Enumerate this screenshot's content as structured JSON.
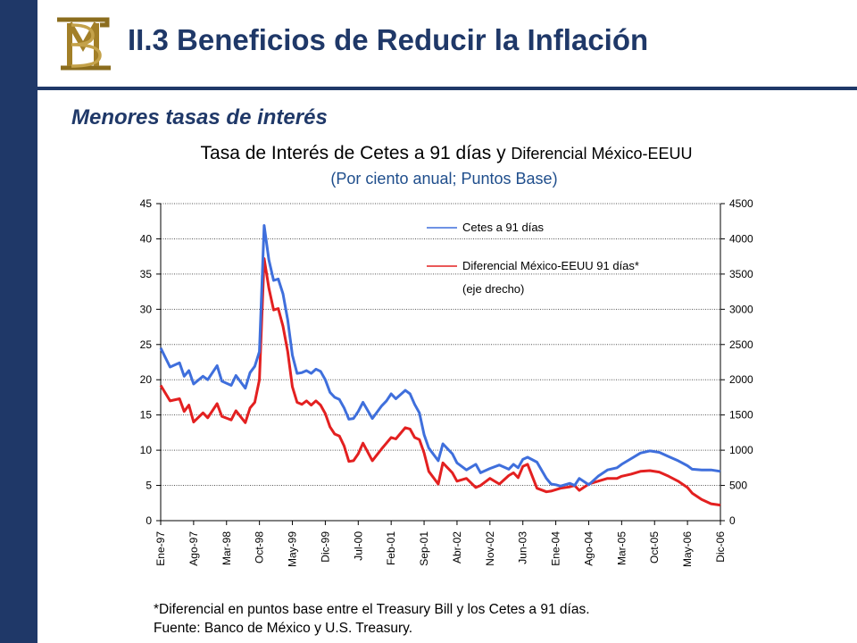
{
  "header": {
    "logo_text": "BM",
    "title": "II.3  Beneficios de Reducir la Inflación",
    "subtitle": "Menores tasas de interés"
  },
  "chart_title": {
    "main": "Tasa de Interés de Cetes a 91 días y ",
    "main_small": "Diferencial México-EEUU",
    "units": "(Por ciento anual; Puntos Base)"
  },
  "footnotes": {
    "note": "*Diferencial en puntos base entre el Treasury Bill y los Cetes a 91 días.",
    "source": "Fuente: Banco de México y U.S. Treasury."
  },
  "colors": {
    "sidebar": "#1f3868",
    "title": "#1f3868",
    "cetes": "#3f6fdc",
    "diferencial": "#e32020"
  },
  "chart_data": {
    "type": "line",
    "x_tick_labels": [
      "Ene-97",
      "Ago-97",
      "Mar-98",
      "Oct-98",
      "May-99",
      "Dic-99",
      "Jul-00",
      "Feb-01",
      "Sep-01",
      "Abr-02",
      "Nov-02",
      "Jun-03",
      "Ene-04",
      "Ago-04",
      "Mar-05",
      "Oct-05",
      "May-06",
      "Dic-06"
    ],
    "x_range": [
      "1997-01",
      "2006-12"
    ],
    "y_left": {
      "min": 0,
      "max": 45,
      "ticks": [
        0,
        5,
        10,
        15,
        20,
        25,
        30,
        35,
        40,
        45
      ]
    },
    "y_right": {
      "min": 0,
      "max": 4500,
      "ticks": [
        0,
        500,
        1000,
        1500,
        2000,
        2500,
        3000,
        3500,
        4000,
        4500
      ]
    },
    "grid": "horizontal dotted",
    "legend_position": "top-center",
    "series": [
      {
        "name": "Cetes a 91 días",
        "axis": "left",
        "color": "#3f6fdc",
        "x": [
          "1997-01",
          "1997-03",
          "1997-05",
          "1997-06",
          "1997-07",
          "1997-08",
          "1997-10",
          "1997-11",
          "1998-01",
          "1998-02",
          "1998-04",
          "1998-05",
          "1998-07",
          "1998-08",
          "1998-09",
          "1998-10",
          "1998-11",
          "1998-12",
          "1999-01",
          "1999-02",
          "1999-03",
          "1999-04",
          "1999-05",
          "1999-06",
          "1999-07",
          "1999-08",
          "1999-09",
          "1999-10",
          "1999-11",
          "1999-12",
          "2000-01",
          "2000-02",
          "2000-03",
          "2000-04",
          "2000-05",
          "2000-06",
          "2000-07",
          "2000-08",
          "2000-10",
          "2000-12",
          "2001-01",
          "2001-02",
          "2001-03",
          "2001-05",
          "2001-06",
          "2001-07",
          "2001-08",
          "2001-09",
          "2001-10",
          "2001-12",
          "2002-01",
          "2002-03",
          "2002-04",
          "2002-06",
          "2002-08",
          "2002-09",
          "2002-11",
          "2003-01",
          "2003-03",
          "2003-04",
          "2003-05",
          "2003-06",
          "2003-07",
          "2003-09",
          "2003-11",
          "2003-12",
          "2004-01",
          "2004-02",
          "2004-04",
          "2004-05",
          "2004-06",
          "2004-08",
          "2004-10",
          "2004-12",
          "2005-02",
          "2005-03",
          "2005-05",
          "2005-07",
          "2005-09",
          "2005-11",
          "2006-01",
          "2006-03",
          "2006-05",
          "2006-06",
          "2006-08",
          "2006-10",
          "2006-12"
        ],
        "values": [
          24.5,
          21.8,
          22.4,
          20.5,
          21.3,
          19.4,
          20.5,
          20.0,
          22.0,
          19.8,
          19.2,
          20.6,
          18.8,
          21.0,
          21.9,
          24.0,
          41.9,
          37.0,
          34.1,
          34.3,
          32.2,
          28.5,
          23.5,
          20.9,
          21.0,
          21.3,
          20.9,
          21.5,
          21.2,
          20.0,
          18.2,
          17.5,
          17.2,
          16.0,
          14.4,
          14.5,
          15.5,
          16.8,
          14.5,
          16.3,
          17.0,
          18.0,
          17.3,
          18.5,
          18.0,
          16.5,
          15.3,
          12.2,
          10.3,
          8.5,
          10.9,
          9.5,
          8.2,
          7.2,
          8.0,
          6.8,
          7.4,
          7.9,
          7.3,
          8.0,
          7.5,
          8.7,
          9.0,
          8.3,
          6.0,
          5.2,
          5.1,
          4.9,
          5.3,
          5.0,
          6.0,
          5.1,
          6.3,
          7.2,
          7.5,
          8.0,
          8.8,
          9.6,
          9.9,
          9.7,
          9.1,
          8.5,
          7.8,
          7.3,
          7.2,
          7.2,
          7.0
        ]
      },
      {
        "name": "Diferencial México-EEUU 91 días*",
        "name_note": "(eje drecho)",
        "axis": "right",
        "color": "#e32020",
        "x": [
          "1997-01",
          "1997-03",
          "1997-05",
          "1997-06",
          "1997-07",
          "1997-08",
          "1997-10",
          "1997-11",
          "1998-01",
          "1998-02",
          "1998-04",
          "1998-05",
          "1998-07",
          "1998-08",
          "1998-09",
          "1998-10",
          "1998-11",
          "1998-12",
          "1999-01",
          "1999-02",
          "1999-03",
          "1999-04",
          "1999-05",
          "1999-06",
          "1999-07",
          "1999-08",
          "1999-09",
          "1999-10",
          "1999-11",
          "1999-12",
          "2000-01",
          "2000-02",
          "2000-03",
          "2000-04",
          "2000-05",
          "2000-06",
          "2000-07",
          "2000-08",
          "2000-10",
          "2000-12",
          "2001-01",
          "2001-02",
          "2001-03",
          "2001-05",
          "2001-06",
          "2001-07",
          "2001-08",
          "2001-09",
          "2001-10",
          "2001-12",
          "2002-01",
          "2002-03",
          "2002-04",
          "2002-06",
          "2002-08",
          "2002-09",
          "2002-11",
          "2003-01",
          "2003-03",
          "2003-04",
          "2003-05",
          "2003-06",
          "2003-07",
          "2003-09",
          "2003-11",
          "2003-12",
          "2004-01",
          "2004-02",
          "2004-04",
          "2004-05",
          "2004-06",
          "2004-08",
          "2004-10",
          "2004-12",
          "2005-02",
          "2005-03",
          "2005-05",
          "2005-07",
          "2005-09",
          "2005-11",
          "2006-01",
          "2006-03",
          "2006-05",
          "2006-06",
          "2006-08",
          "2006-10",
          "2006-12"
        ],
        "values": [
          1920,
          1700,
          1730,
          1550,
          1640,
          1400,
          1530,
          1460,
          1660,
          1480,
          1430,
          1560,
          1390,
          1600,
          1680,
          2000,
          3720,
          3300,
          2990,
          3010,
          2760,
          2400,
          1900,
          1680,
          1650,
          1700,
          1640,
          1700,
          1640,
          1520,
          1330,
          1230,
          1200,
          1060,
          840,
          850,
          950,
          1100,
          850,
          1020,
          1100,
          1180,
          1160,
          1320,
          1300,
          1180,
          1150,
          960,
          700,
          520,
          820,
          680,
          560,
          600,
          470,
          500,
          600,
          520,
          640,
          680,
          610,
          770,
          800,
          460,
          410,
          420,
          440,
          460,
          480,
          500,
          430,
          520,
          560,
          600,
          600,
          630,
          660,
          700,
          710,
          690,
          630,
          560,
          470,
          390,
          300,
          240,
          220
        ]
      }
    ]
  }
}
